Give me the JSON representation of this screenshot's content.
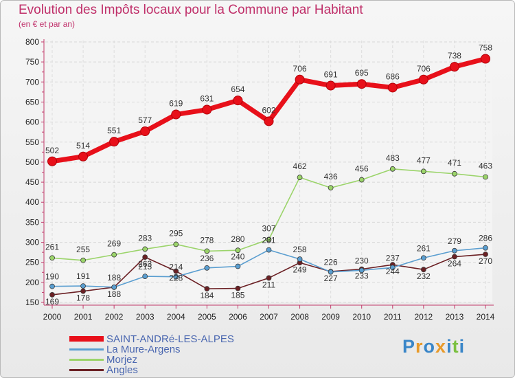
{
  "chart_data": {
    "type": "line",
    "title": "Evolution des Impôts locaux pour la Commune par Habitant",
    "subtitle": "(en € et par an)",
    "x": [
      "2000",
      "2001",
      "2002",
      "2003",
      "2004",
      "2005",
      "2006",
      "2007",
      "2008",
      "2009",
      "2010",
      "2011",
      "2012",
      "2013",
      "2014"
    ],
    "ylim": [
      150,
      800
    ],
    "yticks": [
      150,
      200,
      250,
      300,
      350,
      400,
      450,
      500,
      550,
      600,
      650,
      700,
      750,
      800
    ],
    "grid": true,
    "legend_position": "bottom-left",
    "series": [
      {
        "name": "SAINT-ANDRé-LES-ALPES",
        "color": "#e8101a",
        "values": [
          502,
          514,
          551,
          577,
          619,
          631,
          654,
          602,
          706,
          691,
          695,
          686,
          706,
          738,
          758
        ],
        "labels": [
          502,
          514,
          551,
          577,
          619,
          631,
          654,
          602,
          706,
          691,
          695,
          686,
          706,
          738,
          758
        ]
      },
      {
        "name": "La Mure-Argens",
        "color": "#5a9ed0",
        "values": [
          190,
          191,
          188,
          215,
          214,
          236,
          240,
          281,
          258,
          226,
          230,
          237,
          261,
          279,
          286
        ],
        "labels": [
          190,
          191,
          188,
          215,
          214,
          236,
          240,
          281,
          258,
          226,
          230,
          237,
          261,
          279,
          286
        ]
      },
      {
        "name": "Morjez",
        "color": "#9bd46a",
        "values": [
          261,
          255,
          269,
          283,
          295,
          278,
          280,
          307,
          462,
          436,
          456,
          483,
          477,
          471,
          463
        ],
        "labels": [
          261,
          255,
          269,
          283,
          295,
          278,
          280,
          307,
          462,
          436,
          456,
          483,
          477,
          471,
          463
        ]
      },
      {
        "name": "Angles",
        "color": "#6b2024",
        "values": [
          169,
          178,
          188,
          263,
          228,
          184,
          185,
          211,
          249,
          227,
          233,
          244,
          232,
          264,
          270
        ],
        "labels": [
          169,
          178,
          188,
          263,
          228,
          184,
          185,
          211,
          249,
          227,
          233,
          244,
          232,
          264,
          270
        ]
      }
    ]
  },
  "logo": {
    "text": "Proxiti",
    "letter_colors": [
      "#3a86c8",
      "#e89a2a",
      "#3a86c8",
      "#e89a2a",
      "#3a86c8",
      "#7ac040",
      "#3a86c8"
    ]
  }
}
